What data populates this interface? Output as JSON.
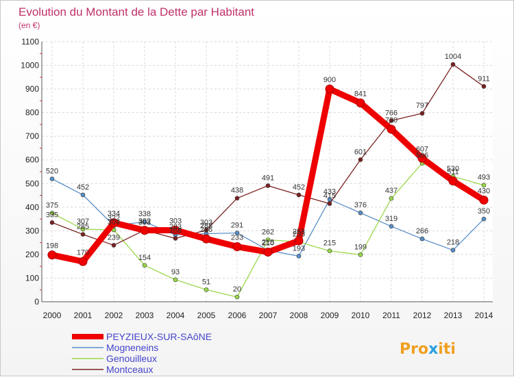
{
  "chart_data": {
    "type": "line",
    "title": "Evolution du Montant de la Dette par Habitant",
    "subtitle": "(en €)",
    "xlabel": "",
    "ylabel": "",
    "ylim": [
      0,
      1100
    ],
    "yticks": [
      0,
      100,
      200,
      300,
      400,
      500,
      600,
      700,
      800,
      900,
      1000,
      1100
    ],
    "categories": [
      "2000",
      "2001",
      "2002",
      "2003",
      "2004",
      "2005",
      "2006",
      "2007",
      "2008",
      "2009",
      "2010",
      "2011",
      "2012",
      "2013",
      "2014"
    ],
    "grid": true,
    "series": [
      {
        "name": "Mogneneins",
        "color": "#5a8fc8",
        "values": [
          520,
          452,
          322,
          338,
          283,
          288,
          291,
          218,
          193,
          433,
          376,
          319,
          266,
          218,
          350
        ]
      },
      {
        "name": "Genouilleux",
        "color": "#9ad84a",
        "values": [
          375,
          307,
          304,
          154,
          93,
          51,
          20,
          262,
          253,
          215,
          199,
          437,
          586,
          530,
          493
        ]
      },
      {
        "name": "Montceaux",
        "color": "#7a2020",
        "values": [
          335,
          285,
          239,
          303,
          268,
          303,
          438,
          491,
          452,
          415,
          601,
          766,
          797,
          1004,
          911
        ]
      },
      {
        "name": "PEYZIEUX-SUR-SAôNE",
        "color": "#ee0000",
        "values": [
          198,
          170,
          334,
          302,
          303,
          266,
          233,
          210,
          258,
          900,
          841,
          730,
          607,
          511,
          430
        ]
      }
    ],
    "legend": [
      {
        "name": "PEYZIEUX-SUR-SAôNE",
        "color": "#ee0000"
      },
      {
        "name": "Mogneneins",
        "color": "#5a8fc8"
      },
      {
        "name": "Genouilleux",
        "color": "#9ad84a"
      },
      {
        "name": "Montceaux",
        "color": "#7a2020"
      }
    ],
    "legend_text_color": "#4444cc",
    "logo": {
      "part1": "Pro",
      "part2": "x",
      "part3": "iti"
    }
  }
}
